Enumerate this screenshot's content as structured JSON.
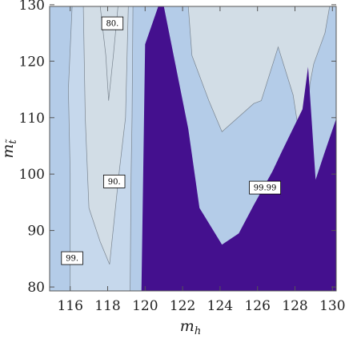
{
  "chart_data": {
    "type": "contour",
    "xlabel": "m_h",
    "ylabel": "m_t̃",
    "xlim": [
      114.9,
      130.2
    ],
    "ylim": [
      79.3,
      129.7
    ],
    "x_ticks": [
      116,
      118,
      120,
      122,
      124,
      126,
      128,
      130
    ],
    "y_ticks": [
      80,
      90,
      100,
      110,
      120,
      130
    ],
    "grid": false,
    "colors": {
      "outer": "#b4cce8",
      "band_90": "#c6d8ec",
      "band_80": "#d2dde6",
      "region_99_99": "#44108e",
      "contour_line": "#7a8590",
      "frame": "#555555"
    },
    "regions": [
      {
        "name": "99",
        "polygon": [
          [
            116.0,
            79.3
          ],
          [
            116.0,
            100.0
          ],
          [
            115.9,
            115.0
          ],
          [
            116.1,
            129.7
          ],
          [
            119.35,
            129.7
          ],
          [
            119.3,
            110.0
          ],
          [
            119.25,
            100.0
          ],
          [
            119.2,
            79.3
          ]
        ]
      },
      {
        "name": "90",
        "polygon": [
          [
            116.7,
            129.7
          ],
          [
            116.8,
            110.0
          ],
          [
            117.0,
            94.0
          ],
          [
            117.6,
            88.0
          ],
          [
            118.1,
            84.0
          ],
          [
            118.6,
            100.0
          ],
          [
            118.95,
            110.0
          ],
          [
            119.1,
            129.7
          ]
        ]
      },
      {
        "name": "80",
        "polygon": [
          [
            117.6,
            129.7
          ],
          [
            117.9,
            121.0
          ],
          [
            118.05,
            113.0
          ],
          [
            118.3,
            121.0
          ],
          [
            118.55,
            129.7
          ]
        ]
      },
      {
        "name": "80",
        "polygon": [
          [
            122.3,
            129.7
          ],
          [
            122.5,
            121.0
          ],
          [
            123.4,
            113.0
          ],
          [
            124.1,
            107.5
          ],
          [
            125.8,
            112.5
          ],
          [
            126.2,
            113.0
          ],
          [
            127.1,
            122.5
          ],
          [
            127.9,
            114.0
          ],
          [
            128.5,
            101.0
          ],
          [
            128.8,
            116.0
          ],
          [
            129.0,
            119.5
          ],
          [
            129.6,
            125.0
          ],
          [
            129.85,
            129.7
          ]
        ]
      },
      {
        "name": "99.99",
        "polygon": [
          [
            119.8,
            79.3
          ],
          [
            120.0,
            123.0
          ],
          [
            120.7,
            129.7
          ],
          [
            121.0,
            129.7
          ],
          [
            122.3,
            108.0
          ],
          [
            122.9,
            94.0
          ],
          [
            124.1,
            87.5
          ],
          [
            125.0,
            89.5
          ],
          [
            125.8,
            94.5
          ],
          [
            126.8,
            100.5
          ],
          [
            127.3,
            104.0
          ],
          [
            128.4,
            111.5
          ],
          [
            128.7,
            119.0
          ],
          [
            129.1,
            99.0
          ],
          [
            129.55,
            103.5
          ],
          [
            130.2,
            109.8
          ],
          [
            130.2,
            79.3
          ]
        ]
      }
    ],
    "contour_labels": [
      {
        "text": "80.",
        "x": 118.25,
        "y": 126.7
      },
      {
        "text": "90.",
        "x": 118.35,
        "y": 98.7
      },
      {
        "text": "99.",
        "x": 116.1,
        "y": 85.1
      },
      {
        "text": "99.99",
        "x": 126.4,
        "y": 97.6
      }
    ]
  }
}
